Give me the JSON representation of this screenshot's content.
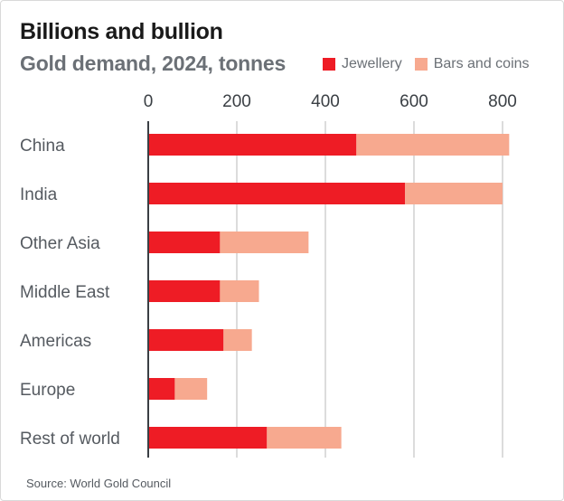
{
  "title": "Billions and bullion",
  "subtitle": "Gold demand, 2024, tonnes",
  "source": "Source: World Gold Council",
  "colors": {
    "jewellery": "#ee1c25",
    "bars_and_coins": "#f7a98f",
    "grid": "#dcdcdc",
    "axis": "#3a3f44"
  },
  "chart_data": {
    "type": "bar",
    "orientation": "horizontal",
    "stacked": true,
    "title": "Billions and bullion",
    "subtitle": "Gold demand, 2024, tonnes",
    "xlabel": "",
    "ylabel": "",
    "xlim": [
      0,
      850
    ],
    "xticks": [
      0,
      200,
      400,
      600,
      800
    ],
    "grid": true,
    "legend_position": "top-right",
    "categories": [
      "China",
      "India",
      "Other Asia",
      "Middle East",
      "Americas",
      "Europe",
      "Rest of world"
    ],
    "series": [
      {
        "name": "Jewellery",
        "values": [
          470,
          580,
          162,
          162,
          170,
          60,
          268
        ]
      },
      {
        "name": "Bars and coins",
        "values": [
          345,
          220,
          200,
          88,
          64,
          73,
          168
        ]
      }
    ]
  }
}
